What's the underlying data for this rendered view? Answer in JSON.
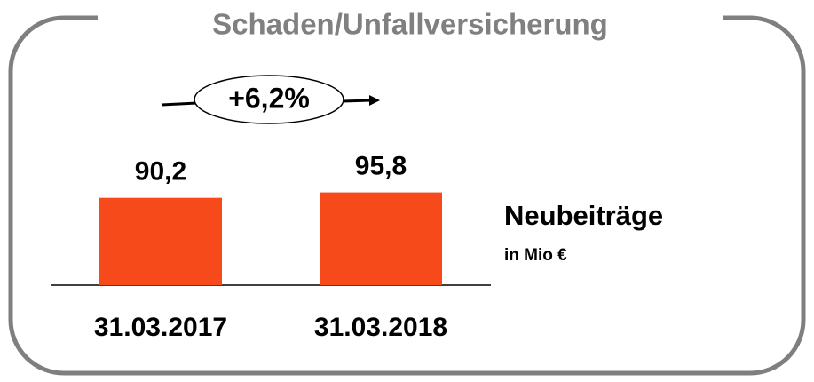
{
  "chart_data": {
    "type": "bar",
    "title": "Schaden/Unfallversicherung",
    "categories": [
      "31.03.2017",
      "31.03.2018"
    ],
    "values": [
      90.2,
      95.8
    ],
    "value_labels": [
      "90,2",
      "95,8"
    ],
    "color": "#f64a1a",
    "annotation": "+6,2%",
    "label": "Neubeiträge",
    "unit": "in Mio €"
  }
}
